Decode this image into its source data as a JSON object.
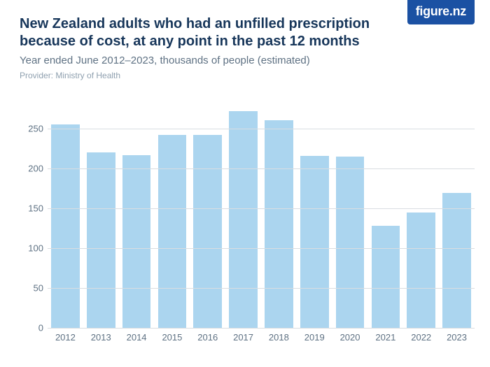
{
  "logo_text": "figure.nz",
  "title": "New Zealand adults who had an unfilled prescription because of cost, at any point in the past 12 months",
  "subtitle": "Year ended June 2012–2023, thousands of people (estimated)",
  "provider": "Provider: Ministry of Health",
  "chart": {
    "type": "bar",
    "categories": [
      "2012",
      "2013",
      "2014",
      "2015",
      "2016",
      "2017",
      "2018",
      "2019",
      "2020",
      "2021",
      "2022",
      "2023"
    ],
    "values": [
      255,
      220,
      217,
      242,
      242,
      272,
      261,
      216,
      215,
      128,
      145,
      169
    ],
    "bar_color": "#abd5ef",
    "grid_color": "#d9dde1",
    "background_color": "#ffffff",
    "y_ticks": [
      0,
      50,
      100,
      150,
      200,
      250
    ],
    "ymin": 0,
    "ymax": 280,
    "title_color": "#17365a",
    "label_color": "#5e7183",
    "provider_color": "#8fa0af",
    "title_fontsize": 20,
    "subtitle_fontsize": 15,
    "provider_fontsize": 12,
    "tick_fontsize": 13,
    "bar_width_ratio": 0.8
  }
}
